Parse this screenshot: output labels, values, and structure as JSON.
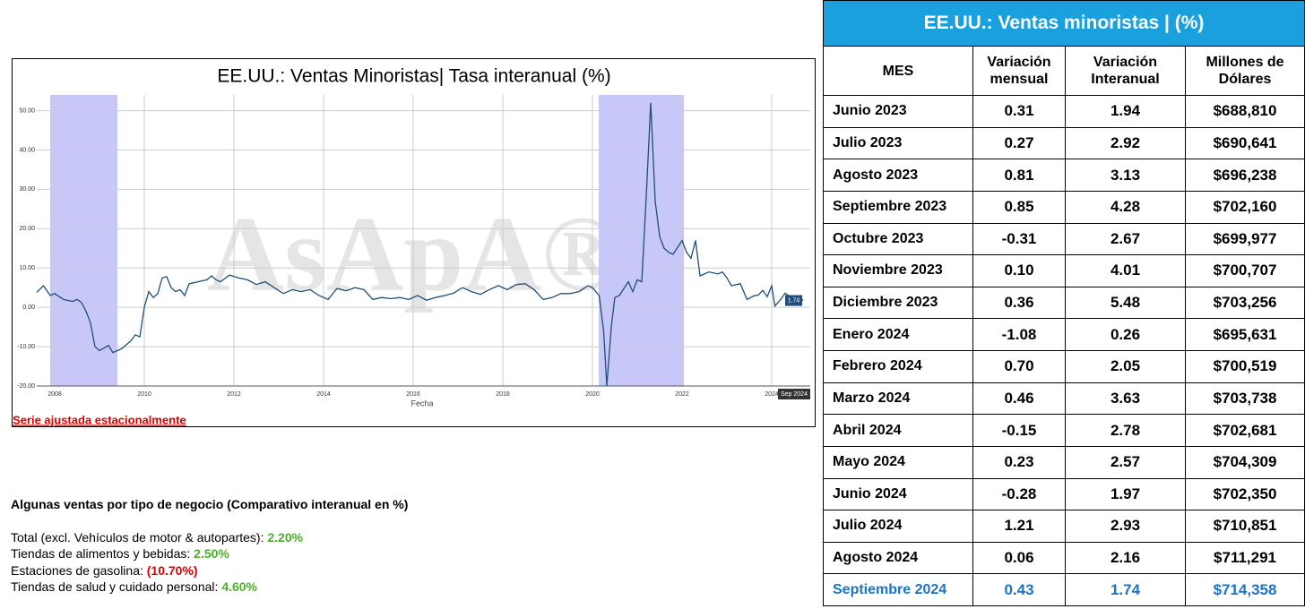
{
  "chart_data": {
    "type": "line",
    "title": "EE.UU.: Ventas Minoristas| Tasa interanual (%)",
    "xlabel": "Fecha",
    "note": "Serie ajustada estacionalmente",
    "watermark": "AsApA®",
    "last_date_label": "Sep 2024",
    "color": "#1f4e79",
    "shade_color": "#c8c8f8",
    "shaded_ranges": [
      [
        2007.9,
        2009.4
      ],
      [
        2020.14,
        2022.04
      ]
    ],
    "xlim": [
      2007.6,
      2024.86
    ],
    "ylim": [
      -20,
      54
    ],
    "xticks": [
      2008,
      2010,
      2012,
      2014,
      2016,
      2018,
      2020,
      2022,
      2024
    ],
    "yticks": [
      {
        "value": -20,
        "label": "-20.00"
      },
      {
        "value": -10,
        "label": "-10.00"
      },
      {
        "value": 0,
        "label": "0.00"
      },
      {
        "value": 10,
        "label": "10.00"
      },
      {
        "value": 20,
        "label": "20.00"
      },
      {
        "value": 30,
        "label": "30.00"
      },
      {
        "value": 40,
        "label": "40.00"
      },
      {
        "value": 50,
        "label": "50.00"
      }
    ],
    "grid": true,
    "x": [
      2007.6,
      2007.75,
      2007.9,
      2008.0,
      2008.2,
      2008.4,
      2008.5,
      2008.6,
      2008.7,
      2008.8,
      2008.9,
      2009.0,
      2009.2,
      2009.3,
      2009.5,
      2009.7,
      2009.8,
      2009.9,
      2010.0,
      2010.1,
      2010.2,
      2010.3,
      2010.4,
      2010.5,
      2010.6,
      2010.7,
      2010.8,
      2010.9,
      2011.0,
      2011.2,
      2011.4,
      2011.5,
      2011.6,
      2011.7,
      2011.9,
      2012.1,
      2012.3,
      2012.5,
      2012.7,
      2012.9,
      2013.1,
      2013.3,
      2013.5,
      2013.7,
      2013.9,
      2014.1,
      2014.3,
      2014.5,
      2014.7,
      2014.9,
      2015.1,
      2015.3,
      2015.5,
      2015.7,
      2015.9,
      2016.1,
      2016.3,
      2016.5,
      2016.7,
      2016.9,
      2017.1,
      2017.3,
      2017.5,
      2017.7,
      2017.9,
      2018.1,
      2018.3,
      2018.5,
      2018.7,
      2018.9,
      2019.1,
      2019.3,
      2019.5,
      2019.7,
      2019.9,
      2020.0,
      2020.15,
      2020.25,
      2020.32,
      2020.42,
      2020.5,
      2020.6,
      2020.8,
      2020.9,
      2021.0,
      2021.1,
      2021.2,
      2021.3,
      2021.4,
      2021.5,
      2021.6,
      2021.7,
      2021.8,
      2022.0,
      2022.1,
      2022.2,
      2022.3,
      2022.4,
      2022.6,
      2022.8,
      2022.9,
      2023.0,
      2023.1,
      2023.3,
      2023.45,
      2023.6,
      2023.7,
      2023.8,
      2023.9,
      2024.0,
      2024.07,
      2024.2,
      2024.3,
      2024.4,
      2024.5,
      2024.6,
      2024.7
    ],
    "values": [
      3.8,
      5.5,
      3,
      3.5,
      2,
      1.5,
      2,
      1.2,
      -1,
      -4,
      -10,
      -11,
      -9.7,
      -11.5,
      -10.5,
      -8.5,
      -7,
      -7.5,
      0,
      4,
      2.5,
      3.5,
      7.5,
      7.8,
      5,
      4,
      4.5,
      3,
      6,
      6.5,
      7,
      8,
      7,
      6.5,
      8.2,
      7.5,
      7,
      5.8,
      6.5,
      5,
      3.5,
      4.5,
      4,
      4.5,
      3,
      2,
      4.8,
      4.2,
      5,
      4.5,
      2,
      2.5,
      2.2,
      2.5,
      2,
      3,
      1.8,
      2.5,
      3,
      3.6,
      5,
      4,
      3.3,
      4.5,
      5.5,
      4.5,
      5.8,
      6,
      4.5,
      2,
      2.5,
      3.5,
      3.5,
      4,
      5.5,
      5,
      3,
      -6,
      -20,
      -5,
      2.5,
      3,
      6.5,
      4,
      7,
      6.5,
      28,
      52,
      27,
      18,
      15,
      14,
      13.5,
      17,
      14,
      12.5,
      17,
      8,
      9,
      8.5,
      9,
      7.5,
      5.5,
      6,
      2,
      2.9,
      3.1,
      4.3,
      2.7,
      5.5,
      0.3,
      2,
      3.6,
      2.8,
      2.6,
      2.9,
      1.74
    ]
  },
  "table": {
    "title": "EE.UU.: Ventas minoristas | (%)",
    "headers": [
      "MES",
      "Variación mensual",
      "Variación Interanual",
      "Millones de Dólares"
    ],
    "rows": [
      [
        "Junio 2023",
        "0.31",
        "1.94",
        "$688,810"
      ],
      [
        "Julio 2023",
        "0.27",
        "2.92",
        "$690,641"
      ],
      [
        "Agosto 2023",
        "0.81",
        "3.13",
        "$696,238"
      ],
      [
        "Septiembre 2023",
        "0.85",
        "4.28",
        "$702,160"
      ],
      [
        "Octubre 2023",
        "-0.31",
        "2.67",
        "$699,977"
      ],
      [
        "Noviembre 2023",
        "0.10",
        "4.01",
        "$700,707"
      ],
      [
        "Diciembre 2023",
        "0.36",
        "5.48",
        "$703,256"
      ],
      [
        "Enero 2024",
        "-1.08",
        "0.26",
        "$695,631"
      ],
      [
        "Febrero 2024",
        "0.70",
        "2.05",
        "$700,519"
      ],
      [
        "Marzo 2024",
        "0.46",
        "3.63",
        "$703,738"
      ],
      [
        "Abril 2024",
        "-0.15",
        "2.78",
        "$702,681"
      ],
      [
        "Mayo 2024",
        "0.23",
        "2.57",
        "$704,309"
      ],
      [
        "Junio 2024",
        "-0.28",
        "1.97",
        "$702,350"
      ],
      [
        "Julio 2024",
        "1.21",
        "2.93",
        "$710,851"
      ],
      [
        "Agosto 2024",
        "0.06",
        "2.16",
        "$711,291"
      ],
      [
        "Septiembre 2024",
        "0.43",
        "1.74",
        "$714,358"
      ]
    ]
  },
  "business": {
    "heading": "Algunas ventas por tipo de negocio (Comparativo interanual en %)",
    "items": [
      {
        "label": "Total (excl. Vehículos de motor & autopartes):",
        "value": "2.20%",
        "color": "#4caf2a"
      },
      {
        "label": "Tiendas de alimentos y bebidas:",
        "value": "2.50%",
        "color": "#4caf2a"
      },
      {
        "label": "Estaciones de gasolina:",
        "value": "(10.70%)",
        "color": "#e00000"
      },
      {
        "label": "Tiendas de salud y cuidado personal:",
        "value": "4.60%",
        "color": "#4caf2a"
      }
    ]
  }
}
